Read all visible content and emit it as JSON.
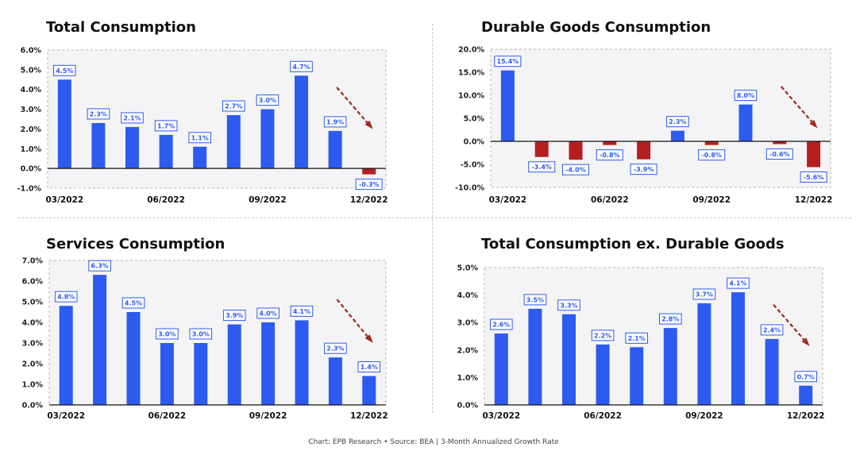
{
  "colors": {
    "positive": "#2d5bf0",
    "negative": "#b51f1f",
    "label_text": "#2d5bf0",
    "arrow": "#a02a1c",
    "plot_bg": "#f4f4f6"
  },
  "caption": "Chart: EPB Research  •  Source: BEA | 3-Month Annualized Growth Rate",
  "chart_data": [
    {
      "type": "bar",
      "title": "Total Consumption",
      "x_tick_labels": [
        "03/2022",
        "06/2022",
        "09/2022",
        "12/2022"
      ],
      "x_tick_positions": [
        0,
        3,
        6,
        9
      ],
      "values": [
        4.5,
        2.3,
        2.1,
        1.7,
        1.1,
        2.7,
        3.0,
        4.7,
        1.9,
        -0.3
      ],
      "value_labels": [
        "4.5%",
        "2.3%",
        "2.1%",
        "1.7%",
        "1.1%",
        "2.7%",
        "3.0%",
        "4.7%",
        "1.9%",
        "-0.3%"
      ],
      "yticks": [
        6.0,
        5.0,
        4.0,
        3.0,
        2.0,
        1.0,
        0.0,
        -1.0
      ],
      "ytick_labels": [
        "6.0%",
        "5.0%",
        "4.0%",
        "3.0%",
        "2.0%",
        "1.0%",
        "0.0%",
        "-1.0%"
      ],
      "ylim": [
        -1.0,
        6.0
      ],
      "grid": false,
      "trend_arrow": "down"
    },
    {
      "type": "bar",
      "title": "Durable Goods Consumption",
      "x_tick_labels": [
        "03/2022",
        "06/2022",
        "09/2022",
        "12/2022"
      ],
      "x_tick_positions": [
        0,
        3,
        6,
        9
      ],
      "values": [
        15.4,
        -3.4,
        -4.0,
        -0.8,
        -3.9,
        2.3,
        -0.8,
        8.0,
        -0.6,
        -5.6
      ],
      "value_labels": [
        "15.4%",
        "-3.4%",
        "-4.0%",
        "-0.8%",
        "-3.9%",
        "2.3%",
        "-0.8%",
        "8.0%",
        "-0.6%",
        "-5.6%"
      ],
      "yticks": [
        20.0,
        15.0,
        10.0,
        5.0,
        0.0,
        -5.0,
        -10.0
      ],
      "ytick_labels": [
        "20.0%",
        "15.0%",
        "10.0%",
        "5.0%",
        "0.0%",
        "-5.0%",
        "-10.0%"
      ],
      "ylim": [
        -10.0,
        20.0
      ],
      "grid": false,
      "trend_arrow": "down"
    },
    {
      "type": "bar",
      "title": "Services Consumption",
      "x_tick_labels": [
        "03/2022",
        "06/2022",
        "09/2022",
        "12/2022"
      ],
      "x_tick_positions": [
        0,
        3,
        6,
        9
      ],
      "values": [
        4.8,
        6.3,
        4.5,
        3.0,
        3.0,
        3.9,
        4.0,
        4.1,
        2.3,
        1.4
      ],
      "value_labels": [
        "4.8%",
        "6.3%",
        "4.5%",
        "3.0%",
        "3.0%",
        "3.9%",
        "4.0%",
        "4.1%",
        "2.3%",
        "1.4%"
      ],
      "yticks": [
        7.0,
        6.0,
        5.0,
        4.0,
        3.0,
        2.0,
        1.0,
        0.0
      ],
      "ytick_labels": [
        "7.0%",
        "6.0%",
        "5.0%",
        "4.0%",
        "3.0%",
        "2.0%",
        "1.0%",
        "0.0%"
      ],
      "ylim": [
        0.0,
        7.0
      ],
      "grid": false,
      "trend_arrow": "down"
    },
    {
      "type": "bar",
      "title": "Total Consumption ex. Durable Goods",
      "x_tick_labels": [
        "03/2022",
        "06/2022",
        "09/2022",
        "12/2022"
      ],
      "x_tick_positions": [
        0,
        3,
        6,
        9
      ],
      "values": [
        2.6,
        3.5,
        3.3,
        2.2,
        2.1,
        2.8,
        3.7,
        4.1,
        2.4,
        0.7
      ],
      "value_labels": [
        "2.6%",
        "3.5%",
        "3.3%",
        "2.2%",
        "2.1%",
        "2.8%",
        "3.7%",
        "4.1%",
        "2.4%",
        "0.7%"
      ],
      "yticks": [
        5.0,
        4.0,
        3.0,
        2.0,
        1.0,
        0.0
      ],
      "ytick_labels": [
        "5.0%",
        "4.0%",
        "3.0%",
        "2.0%",
        "1.0%",
        "0.0%"
      ],
      "ylim": [
        0.0,
        5.0
      ],
      "grid": false,
      "trend_arrow": "down"
    }
  ]
}
